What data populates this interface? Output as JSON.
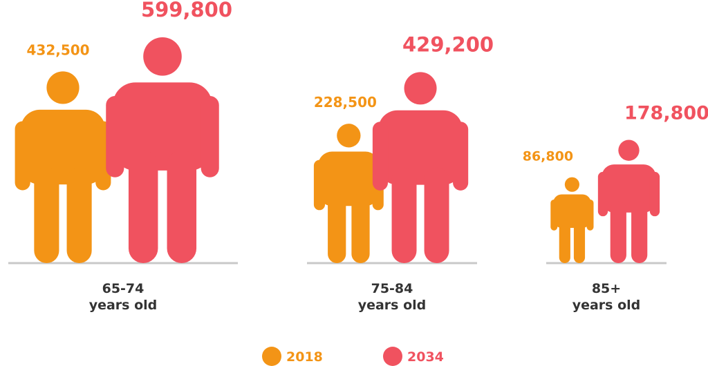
{
  "chart_data": {
    "type": "bar",
    "title": "",
    "xlabel": "",
    "ylabel": "",
    "categories": [
      {
        "line1": "65-74",
        "line2": "years old"
      },
      {
        "line1": "75-84",
        "line2": "years old"
      },
      {
        "line1": "85+",
        "line2": "years old"
      }
    ],
    "series": [
      {
        "name": "2018",
        "color": "#F39416",
        "values": [
          432500,
          228500,
          86800
        ],
        "labels": [
          "432,500",
          "228,500",
          "86,800"
        ]
      },
      {
        "name": "2034",
        "color": "#F0525F",
        "values": [
          599800,
          429200,
          178800
        ],
        "labels": [
          "599,800",
          "429,200",
          "178,800"
        ]
      }
    ],
    "ylim": [
      0,
      599800
    ],
    "legend_position": "bottom-center",
    "grid": false,
    "baseline_color": "#C8C8C8",
    "category_label_color": "#333333"
  }
}
